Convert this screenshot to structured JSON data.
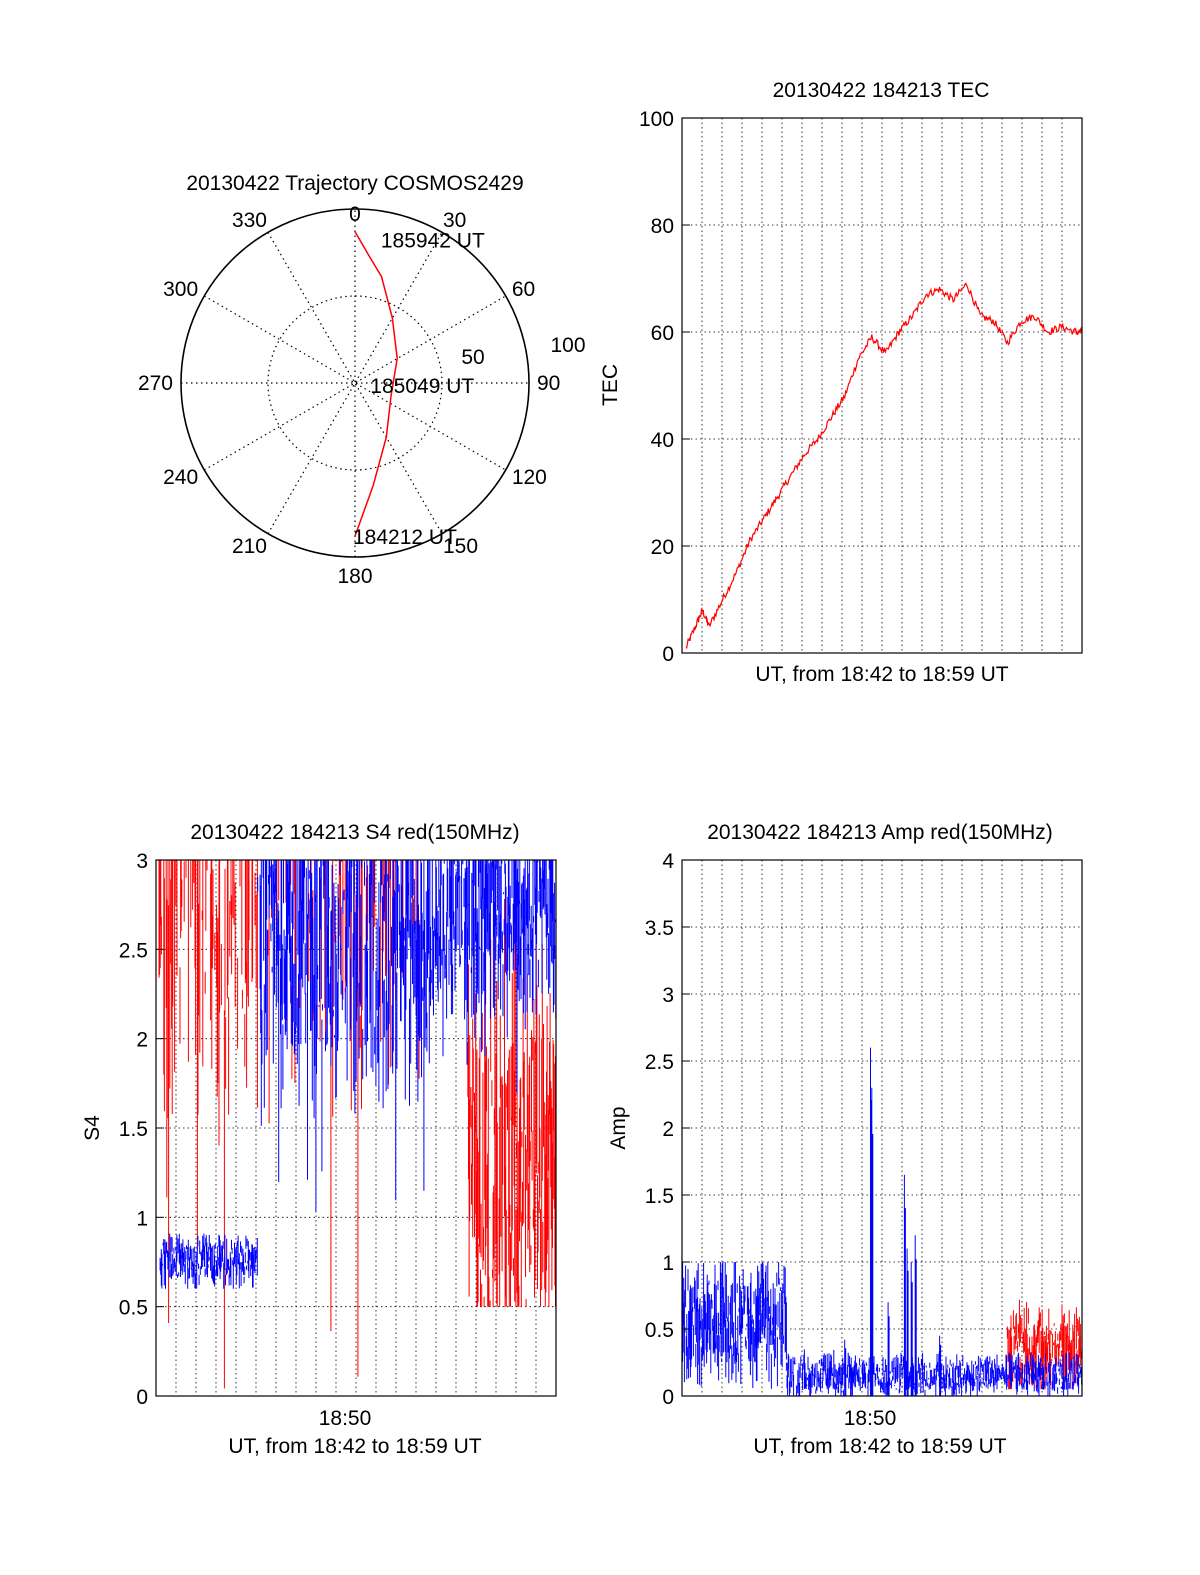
{
  "colors": {
    "red": "#ff0000",
    "blue": "#0000ff",
    "axis": "#000000",
    "grid": "#000000"
  },
  "chart_data": [
    {
      "type": "polar",
      "title": "20130422 Trajectory COSMOS2429",
      "angle_ticks": [
        "0",
        "30",
        "60",
        "90",
        "120",
        "150",
        "180",
        "210",
        "240",
        "270",
        "300",
        "330"
      ],
      "radius_labels": [
        "50",
        "100"
      ],
      "radius_range": [
        0,
        100
      ],
      "grid": true,
      "annotations": [
        {
          "text": "185942 UT",
          "azimuth": 11,
          "radius": 84
        },
        {
          "text": "185049 UT",
          "azimuth": 96,
          "radius": 10
        },
        {
          "text": "184212 UT",
          "azimuth": 180,
          "radius": 88
        }
      ],
      "series": [
        {
          "color": "red",
          "points": [
            [
              0,
              87
            ],
            [
              6,
              74
            ],
            [
              14,
              63
            ],
            [
              30,
              43
            ],
            [
              60,
              28
            ],
            [
              110,
              22
            ],
            [
              150,
              36
            ],
            [
              170,
              60
            ],
            [
              180,
              88
            ]
          ]
        }
      ]
    },
    {
      "type": "line",
      "title": "20130422 184213 TEC",
      "xlabel": "UT, from 18:42 to 18:59 UT",
      "ylabel": "TEC",
      "xlim": [
        18.7,
        18.995
      ],
      "ylim": [
        0,
        100
      ],
      "y_ticks": [
        "0",
        "20",
        "40",
        "60",
        "80",
        "100"
      ],
      "grid": true,
      "series": [
        {
          "color": "red",
          "x": [
            18.703,
            18.71,
            18.715,
            18.72,
            18.73,
            18.74,
            18.75,
            18.76,
            18.77,
            18.78,
            18.79,
            18.8,
            18.81,
            18.82,
            18.83,
            18.84,
            18.85,
            18.86,
            18.87,
            18.88,
            18.89,
            18.9,
            18.91,
            18.92,
            18.93,
            18.94,
            18.95,
            18.96,
            18.97,
            18.98,
            18.99,
            18.995
          ],
          "y": [
            1,
            5,
            8,
            5,
            10,
            15,
            21,
            25,
            29,
            33,
            37,
            40,
            44,
            48,
            55,
            59,
            56,
            60,
            63,
            67,
            68,
            66,
            69,
            63,
            62,
            58,
            62,
            63,
            60,
            61,
            60,
            60
          ]
        }
      ]
    },
    {
      "type": "line",
      "title": "20130422 184213 S4 red(150MHz)",
      "xlabel": "UT, from 18:42 to 18:59 UT",
      "ylabel": "S4",
      "xlim": [
        18.7,
        18.995
      ],
      "ylim": [
        0,
        3
      ],
      "x_ticks": [
        "18:50"
      ],
      "y_ticks": [
        "0",
        "0.5",
        "1",
        "1.5",
        "2",
        "2.5",
        "3"
      ],
      "grid": true,
      "series": [
        {
          "color": "red",
          "segments": [
            {
              "x": [
                18.7,
                18.775
              ],
              "level": [
                3.0,
                3.0
              ],
              "spread": [
                0,
                3
              ],
              "density": 0.6
            },
            {
              "x": [
                18.775,
                18.895
              ],
              "level": [
                3.0,
                3.0
              ],
              "spread": [
                0,
                3
              ],
              "density": 0.25
            },
            {
              "x": [
                18.93,
                18.995
              ],
              "level": [
                1.2,
                1.3
              ],
              "spread": [
                0.5,
                3
              ],
              "density": 0.9
            }
          ]
        },
        {
          "color": "blue",
          "segments": [
            {
              "x": [
                18.703,
                18.775
              ],
              "level": [
                0.75,
                0.75
              ],
              "spread": [
                0.6,
                0.92
              ],
              "density": 1
            },
            {
              "x": [
                18.775,
                18.905
              ],
              "level": [
                2.6,
                2.6
              ],
              "spread": [
                1.0,
                3
              ],
              "density": 0.9
            },
            {
              "x": [
                18.905,
                18.995
              ],
              "level": [
                2.8,
                2.8
              ],
              "spread": [
                1.6,
                3
              ],
              "density": 1
            }
          ]
        }
      ]
    },
    {
      "type": "line",
      "title": "20130422 184213 Amp red(150MHz)",
      "xlabel": "UT, from 18:42 to 18:59 UT",
      "ylabel": "Amp",
      "xlim": [
        18.7,
        18.995
      ],
      "ylim": [
        0,
        4
      ],
      "x_ticks": [
        "18:50"
      ],
      "y_ticks": [
        "0",
        "0.5",
        "1",
        "1.5",
        "2",
        "2.5",
        "3",
        "3.5",
        "4"
      ],
      "grid": true,
      "series": [
        {
          "color": "red",
          "segments": [
            {
              "x": [
                18.94,
                18.995
              ],
              "level": [
                0.35,
                0.35
              ],
              "spread": [
                0.05,
                0.72
              ],
              "density": 1
            }
          ]
        },
        {
          "color": "blue",
          "segments": [
            {
              "x": [
                18.7,
                18.777
              ],
              "level": [
                0.55,
                0.55
              ],
              "spread": [
                0,
                1.0
              ],
              "density": 1
            },
            {
              "x": [
                18.777,
                18.995
              ],
              "level": [
                0.15,
                0.15
              ],
              "spread": [
                0,
                0.35
              ],
              "density": 1
            }
          ],
          "peaks": [
            [
              18.839,
              2.6
            ],
            [
              18.84,
              2.3
            ],
            [
              18.852,
              0.7
            ],
            [
              18.864,
              1.65
            ],
            [
              18.866,
              1.1
            ],
            [
              18.869,
              1.0
            ],
            [
              18.872,
              1.2
            ],
            [
              18.82,
              0.42
            ],
            [
              18.89,
              0.45
            ]
          ]
        }
      ]
    }
  ]
}
